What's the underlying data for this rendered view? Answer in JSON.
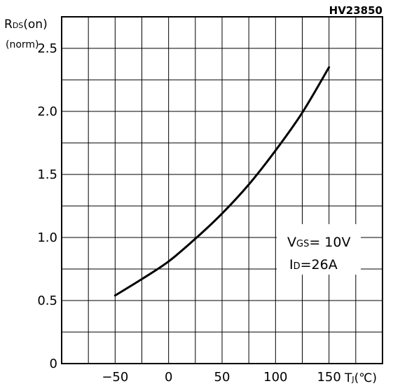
{
  "chart_data": {
    "type": "line",
    "figure_id": "HV23850",
    "ylabel_main": "RDS(on)",
    "ylabel_sub": "(norm)",
    "xlabel": "TJ(°C)",
    "xlim": [
      -100,
      200
    ],
    "ylim": [
      0,
      2.75
    ],
    "x_ticks": [
      -50,
      0,
      50,
      100,
      150
    ],
    "y_ticks": [
      0,
      0.5,
      1.0,
      1.5,
      2.0,
      2.5
    ],
    "x_tick_labels": [
      "−50",
      "0",
      "50",
      "100",
      "150"
    ],
    "y_tick_labels": [
      "0",
      "0.5",
      "1.0",
      "1.5",
      "2.0",
      "2.5"
    ],
    "grid": true,
    "series": [
      {
        "name": "",
        "x": [
          -50,
          -25,
          0,
          25,
          50,
          75,
          100,
          125,
          150
        ],
        "y": [
          0.54,
          0.67,
          0.81,
          0.99,
          1.19,
          1.42,
          1.69,
          1.99,
          2.35
        ]
      }
    ],
    "annotation": {
      "line1": "VGS= 10V",
      "line2": "ID=26A"
    }
  }
}
